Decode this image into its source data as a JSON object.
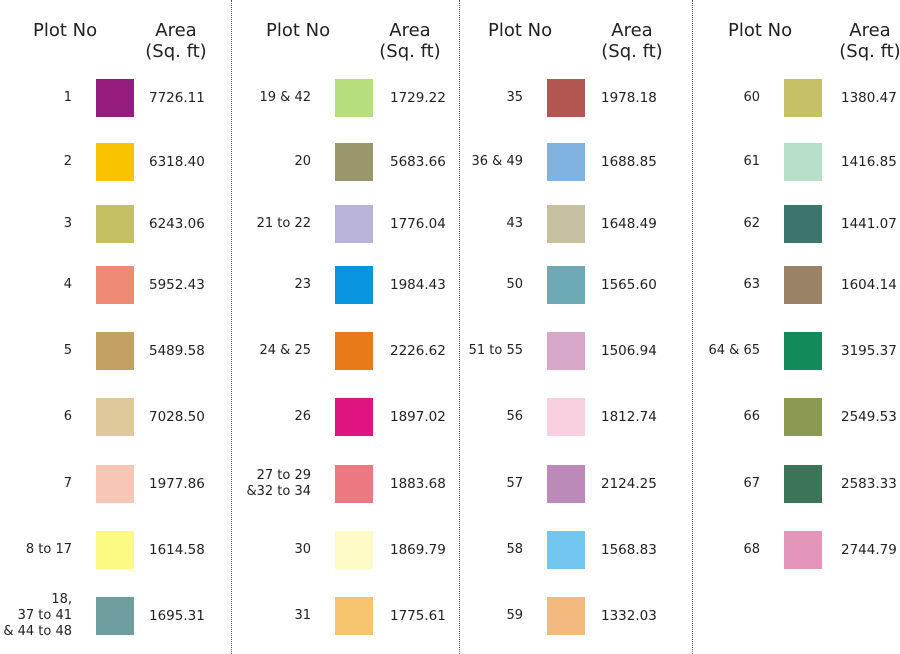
{
  "header": {
    "plot_label": "Plot No",
    "area_label_line1": "Area",
    "area_label_line2": "(Sq. ft)"
  },
  "columns": [
    {
      "rows": [
        {
          "plot": "1",
          "color": "#951c7c",
          "area": "7726.11"
        },
        {
          "plot": "2",
          "color": "#f9c300",
          "area": "6318.40"
        },
        {
          "plot": "3",
          "color": "#c6c065",
          "area": "6243.06"
        },
        {
          "plot": "4",
          "color": "#ee8a73",
          "area": "5952.43"
        },
        {
          "plot": "5",
          "color": "#c3a063",
          "area": "5489.58"
        },
        {
          "plot": "6",
          "color": "#dfc99b",
          "area": "7028.50"
        },
        {
          "plot": "7",
          "color": "#f7c6b4",
          "area": "1977.86"
        },
        {
          "plot": "8 to 17",
          "color": "#fdfa84",
          "area": "1614.58"
        },
        {
          "plot": "18,\n37 to 41\n& 44 to 48",
          "color": "#6e9e9f",
          "area": "1695.31"
        }
      ]
    },
    {
      "rows": [
        {
          "plot": "19 & 42",
          "color": "#b7de7c",
          "area": "1729.22"
        },
        {
          "plot": "20",
          "color": "#9a976b",
          "area": "5683.66"
        },
        {
          "plot": "21 to 22",
          "color": "#bab3d9",
          "area": "1776.04"
        },
        {
          "plot": "23",
          "color": "#0895df",
          "area": "1984.43"
        },
        {
          "plot": "24 & 25",
          "color": "#e97a1a",
          "area": "2226.62"
        },
        {
          "plot": "26",
          "color": "#df1480",
          "area": "1897.02"
        },
        {
          "plot": "27 to 29\n&32 to 34",
          "color": "#ec7882",
          "area": "1883.68"
        },
        {
          "plot": "30",
          "color": "#fefbc7",
          "area": "1869.79"
        },
        {
          "plot": "31",
          "color": "#f7c470",
          "area": "1775.61"
        }
      ]
    },
    {
      "rows": [
        {
          "plot": "35",
          "color": "#b25651",
          "area": "1978.18"
        },
        {
          "plot": "36 & 49",
          "color": "#80b3e0",
          "area": "1688.85"
        },
        {
          "plot": "43",
          "color": "#c5c1a1",
          "area": "1648.49"
        },
        {
          "plot": "50",
          "color": "#6eaab6",
          "area": "1565.60"
        },
        {
          "plot": "51 to 55",
          "color": "#d6a7c9",
          "area": "1506.94"
        },
        {
          "plot": "56",
          "color": "#f8d0e2",
          "area": "1812.74"
        },
        {
          "plot": "57",
          "color": "#bb8ab9",
          "area": "2124.25"
        },
        {
          "plot": "58",
          "color": "#73c6f0",
          "area": "1568.83"
        },
        {
          "plot": "59",
          "color": "#f3b97f",
          "area": "1332.03"
        }
      ]
    },
    {
      "rows": [
        {
          "plot": "60",
          "color": "#c6c067",
          "area": "1380.47"
        },
        {
          "plot": "61",
          "color": "#b7dfca",
          "area": "1416.85"
        },
        {
          "plot": "62",
          "color": "#3b756b",
          "area": "1441.07"
        },
        {
          "plot": "63",
          "color": "#9a8266",
          "area": "1604.14"
        },
        {
          "plot": "64 & 65",
          "color": "#138a59",
          "area": "3195.37"
        },
        {
          "plot": "66",
          "color": "#8a9a52",
          "area": "2549.53"
        },
        {
          "plot": "67",
          "color": "#3b7457",
          "area": "2583.33"
        },
        {
          "plot": "68",
          "color": "#e495ba",
          "area": "2744.79"
        }
      ]
    }
  ]
}
